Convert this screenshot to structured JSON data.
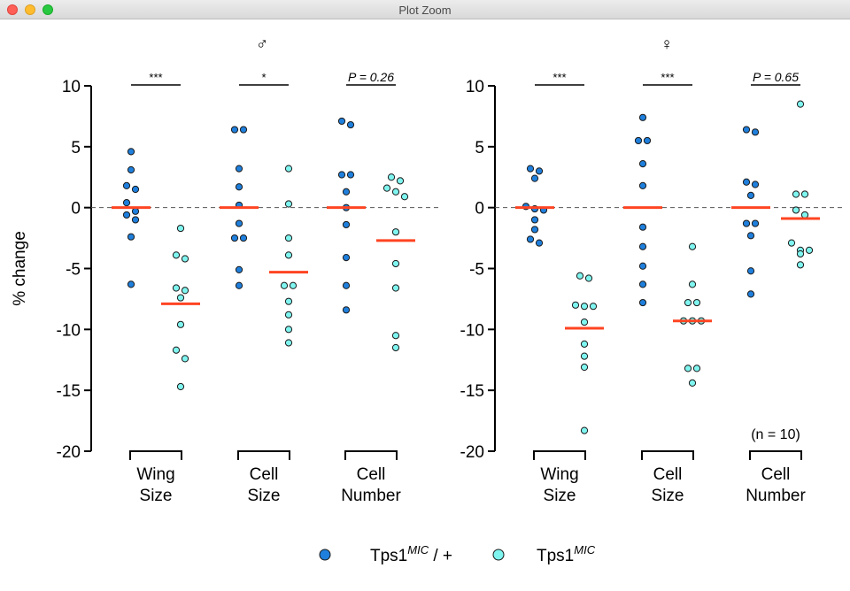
{
  "window": {
    "title": "Plot Zoom"
  },
  "legend": {
    "items": [
      {
        "base": "Tps1",
        "sup": "MIC",
        "suffix": " / +",
        "color": "#1f7fdc"
      },
      {
        "base": "Tps1",
        "sup": "MIC",
        "suffix": "",
        "color": "#7ff5f0"
      }
    ]
  },
  "colors": {
    "mean_bar": "#ff4422",
    "zero_line": "#555555"
  },
  "chart_data": [
    {
      "type": "scatter",
      "title": "♂",
      "ylabel": "% change",
      "ylim": [
        -20,
        10
      ],
      "yticks": [
        "10",
        "5",
        "0",
        "-5",
        "-10",
        "-15",
        "-20"
      ],
      "zero_line": "dashed",
      "annotation": "",
      "groups": [
        {
          "label_line1": "Wing",
          "label_line2": "Size",
          "significance": "***",
          "series": [
            {
              "values": [
                4.6,
                3.1,
                1.8,
                1.5,
                0.4,
                -0.3,
                -0.6,
                -1.0,
                -2.4,
                -6.3
              ],
              "mean": 0.0
            },
            {
              "values": [
                -1.7,
                -3.9,
                -4.2,
                -6.6,
                -6.8,
                -7.4,
                -9.6,
                -11.7,
                -12.4,
                -14.7
              ],
              "mean": -7.9
            }
          ]
        },
        {
          "label_line1": "Cell",
          "label_line2": "Size",
          "significance": "*",
          "series": [
            {
              "values": [
                6.4,
                6.4,
                3.2,
                1.7,
                0.2,
                -1.3,
                -2.5,
                -2.5,
                -5.1,
                -6.4
              ],
              "mean": 0.0
            },
            {
              "values": [
                3.2,
                0.3,
                -2.5,
                -3.9,
                -6.4,
                -6.4,
                -7.7,
                -8.8,
                -10.0,
                -11.1
              ],
              "mean": -5.3
            }
          ]
        },
        {
          "label_line1": "Cell",
          "label_line2": "Number",
          "significance": "P = 0.26",
          "series": [
            {
              "values": [
                7.1,
                6.8,
                2.7,
                2.7,
                1.3,
                0.0,
                -1.4,
                -4.1,
                -6.4,
                -8.4
              ],
              "mean": 0.0
            },
            {
              "values": [
                2.5,
                2.2,
                1.6,
                1.3,
                0.9,
                -2.0,
                -4.6,
                -6.6,
                -10.5,
                -11.5
              ],
              "mean": -2.7
            }
          ]
        }
      ]
    },
    {
      "type": "scatter",
      "title": "♀",
      "ylabel": "",
      "ylim": [
        -20,
        10
      ],
      "yticks": [
        "10",
        "5",
        "0",
        "-5",
        "-10",
        "-15",
        "-20"
      ],
      "zero_line": "dashed",
      "annotation": "(n = 10)",
      "groups": [
        {
          "label_line1": "Wing",
          "label_line2": "Size",
          "significance": "***",
          "series": [
            {
              "values": [
                3.2,
                3.0,
                2.4,
                0.1,
                -0.1,
                -0.2,
                -1.0,
                -1.8,
                -2.6,
                -2.9
              ],
              "mean": 0.0
            },
            {
              "values": [
                -5.6,
                -5.8,
                -8.0,
                -8.1,
                -8.1,
                -9.4,
                -11.2,
                -12.2,
                -13.1,
                -18.3
              ],
              "mean": -9.9
            }
          ]
        },
        {
          "label_line1": "Cell",
          "label_line2": "Size",
          "significance": "***",
          "series": [
            {
              "values": [
                7.4,
                5.5,
                5.5,
                3.6,
                1.8,
                -1.6,
                -3.2,
                -4.8,
                -6.3,
                -7.8
              ],
              "mean": 0.0
            },
            {
              "values": [
                -3.2,
                -6.3,
                -7.8,
                -7.8,
                -9.3,
                -9.3,
                -9.3,
                -13.2,
                -13.2,
                -14.4
              ],
              "mean": -9.3
            }
          ]
        },
        {
          "label_line1": "Cell",
          "label_line2": "Number",
          "significance": "P = 0.65",
          "series": [
            {
              "values": [
                6.4,
                6.2,
                2.1,
                1.9,
                1.0,
                -1.3,
                -1.3,
                -2.3,
                -5.2,
                -7.1
              ],
              "mean": 0.0
            },
            {
              "values": [
                8.5,
                1.1,
                1.1,
                -0.2,
                -0.6,
                -2.9,
                -3.5,
                -3.5,
                -3.8,
                -4.7
              ],
              "mean": -0.9
            }
          ]
        }
      ]
    }
  ]
}
